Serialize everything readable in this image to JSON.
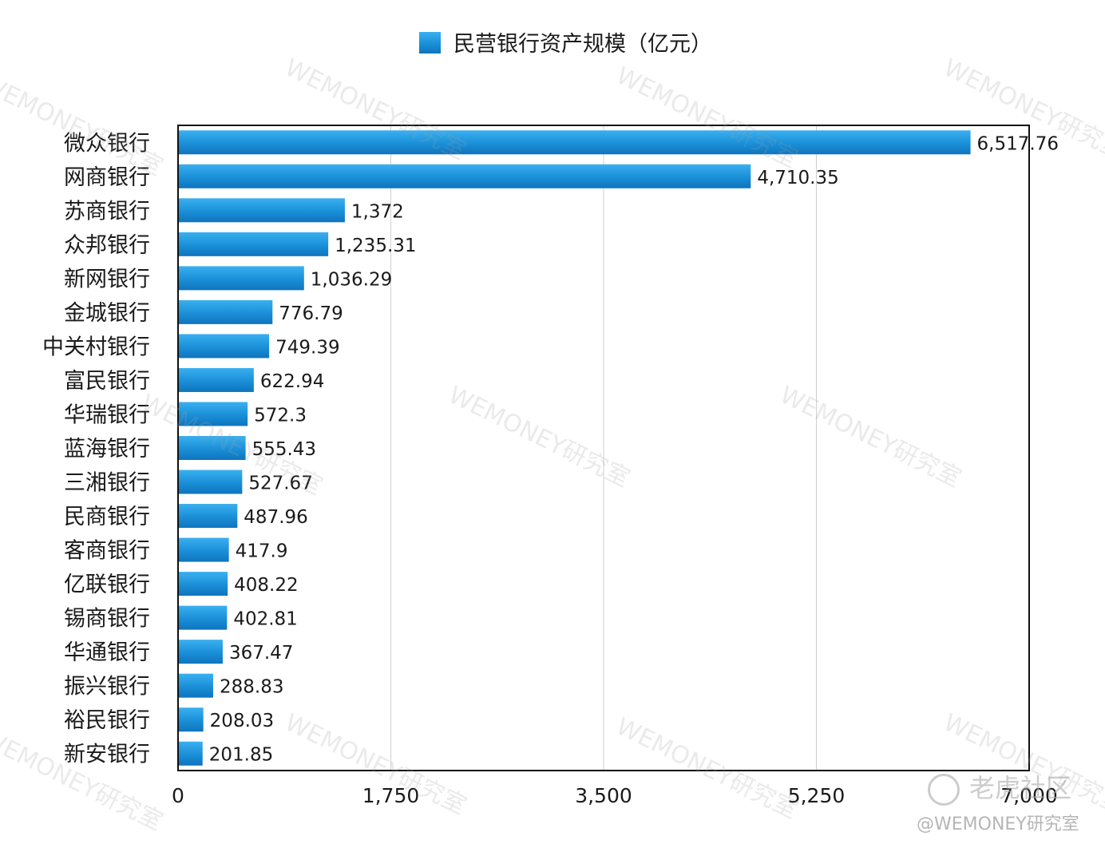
{
  "chart_data": {
    "type": "bar",
    "orientation": "horizontal",
    "legend": {
      "label": "民营银行资产规模（亿元）",
      "color": "#1a8fd8",
      "placement": "top"
    },
    "categories": [
      "微众银行",
      "网商银行",
      "苏商银行",
      "众邦银行",
      "新网银行",
      "金城银行",
      "中关村银行",
      "富民银行",
      "华瑞银行",
      "蓝海银行",
      "三湘银行",
      "民商银行",
      "客商银行",
      "亿联银行",
      "锡商银行",
      "华通银行",
      "振兴银行",
      "裕民银行",
      "新安银行"
    ],
    "values": [
      6517.76,
      4710.35,
      1372,
      1235.31,
      1036.29,
      776.79,
      749.39,
      622.94,
      572.3,
      555.43,
      527.67,
      487.96,
      417.9,
      408.22,
      402.81,
      367.47,
      288.83,
      208.03,
      201.85
    ],
    "value_labels": [
      "6,517.76",
      "4,710.35",
      "1,372",
      "1,235.31",
      "1,036.29",
      "776.79",
      "749.39",
      "622.94",
      "572.3",
      "555.43",
      "527.67",
      "487.96",
      "417.9",
      "408.22",
      "402.81",
      "367.47",
      "288.83",
      "208.03",
      "201.85"
    ],
    "xlim": [
      0,
      7000
    ],
    "xticks": [
      0,
      1750,
      3500,
      5250,
      7000
    ],
    "xtick_labels": [
      "0",
      "1,750",
      "3,500",
      "5,250",
      "7,000"
    ],
    "grid": "vertical"
  },
  "watermarks": {
    "text": "WEMONEY研究室",
    "footer": "@WEMONEY研究室",
    "site": "老虎社区"
  }
}
